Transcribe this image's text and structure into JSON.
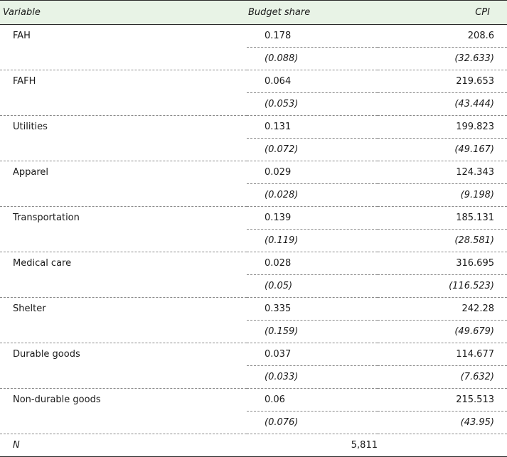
{
  "header": {
    "variable": "Variable",
    "budget_share": "Budget share",
    "cpi": "CPI"
  },
  "rows": [
    {
      "label": "FAH",
      "budget_share": "0.178",
      "budget_share_se": "(0.088)",
      "cpi": "208.6",
      "cpi_se": "(32.633)"
    },
    {
      "label": "FAFH",
      "budget_share": "0.064",
      "budget_share_se": "(0.053)",
      "cpi": "219.653",
      "cpi_se": "(43.444)"
    },
    {
      "label": "Utilities",
      "budget_share": "0.131",
      "budget_share_se": "(0.072)",
      "cpi": "199.823",
      "cpi_se": "(49.167)"
    },
    {
      "label": "Apparel",
      "budget_share": "0.029",
      "budget_share_se": "(0.028)",
      "cpi": "124.343",
      "cpi_se": "(9.198)"
    },
    {
      "label": "Transportation",
      "budget_share": "0.139",
      "budget_share_se": "(0.119)",
      "cpi": "185.131",
      "cpi_se": "(28.581)"
    },
    {
      "label": "Medical care",
      "budget_share": "0.028",
      "budget_share_se": "(0.05)",
      "cpi": "316.695",
      "cpi_se": "(116.523)"
    },
    {
      "label": "Shelter",
      "budget_share": "0.335",
      "budget_share_se": "(0.159)",
      "cpi": "242.28",
      "cpi_se": "(49.679)"
    },
    {
      "label": "Durable goods",
      "budget_share": "0.037",
      "budget_share_se": "(0.033)",
      "cpi": "114.677",
      "cpi_se": "(7.632)"
    },
    {
      "label": "Non-durable goods",
      "budget_share": "0.06",
      "budget_share_se": "(0.076)",
      "cpi": "215.513",
      "cpi_se": "(43.95)"
    }
  ],
  "footer": {
    "n_label": "N",
    "n_value": "5,811"
  },
  "colors": {
    "header_bg": "#e8f3e6"
  }
}
